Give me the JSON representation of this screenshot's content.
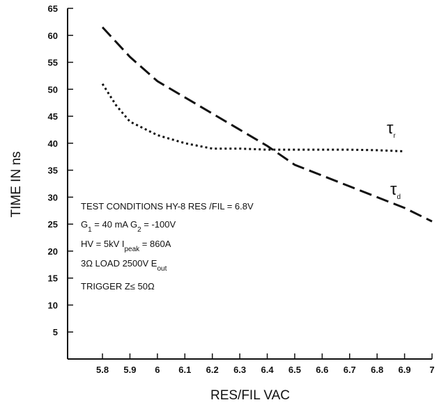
{
  "chart_data": {
    "type": "line",
    "xlabel": "RES/FIL VAC",
    "ylabel": "TIME IN ns",
    "xlim": [
      5.673,
      7.0
    ],
    "ylim": [
      0,
      65
    ],
    "xticks": [
      5.8,
      5.9,
      6.0,
      6.1,
      6.2,
      6.3,
      6.4,
      6.5,
      6.6,
      6.7,
      6.8,
      6.9,
      7.0
    ],
    "yticks": [
      5,
      10,
      15,
      20,
      25,
      30,
      35,
      40,
      45,
      50,
      55,
      60,
      65
    ],
    "series": [
      {
        "name": [
          {
            "text": "τ"
          },
          {
            "text": "d",
            "sub": true
          }
        ],
        "color": "#111",
        "style": "dashed",
        "x": [
          5.8,
          5.9,
          6.0,
          6.1,
          6.2,
          6.3,
          6.4,
          6.5,
          6.6,
          6.7,
          6.8,
          6.9,
          7.0
        ],
        "values": [
          61.5,
          56,
          51.5,
          48.5,
          45.5,
          42.5,
          39.5,
          36,
          34,
          32,
          30,
          28,
          25.5
        ]
      },
      {
        "name": [
          {
            "text": "τ"
          },
          {
            "text": "r",
            "sub": true
          }
        ],
        "color": "#111",
        "style": "dotted",
        "x": [
          5.8,
          5.85,
          5.9,
          6.0,
          6.1,
          6.2,
          6.3,
          6.4,
          6.5,
          6.6,
          6.7,
          6.8,
          6.9
        ],
        "values": [
          51,
          47,
          44,
          41.5,
          40,
          39,
          39,
          38.8,
          38.8,
          38.8,
          38.8,
          38.7,
          38.5
        ]
      }
    ],
    "annotations": [
      [
        {
          "text": "TEST CONDITIONS HY-8  RES /FIL = 6.8V"
        }
      ],
      [
        {
          "text": "G"
        },
        {
          "text": "1",
          "sub": true
        },
        {
          "text": " = 40 mA G"
        },
        {
          "text": "2",
          "sub": true
        },
        {
          "text": " =  -100V"
        }
      ],
      [
        {
          "text": "HV = 5kV  I"
        },
        {
          "text": "peak",
          "sub": true
        },
        {
          "text": "  = 860A"
        }
      ],
      [
        {
          "text": "3Ω  LOAD 2500V  E"
        },
        {
          "text": "out",
          "sub": true
        }
      ],
      [
        {
          "text": "TRIGGER  Z≤ 50Ω"
        }
      ]
    ]
  }
}
